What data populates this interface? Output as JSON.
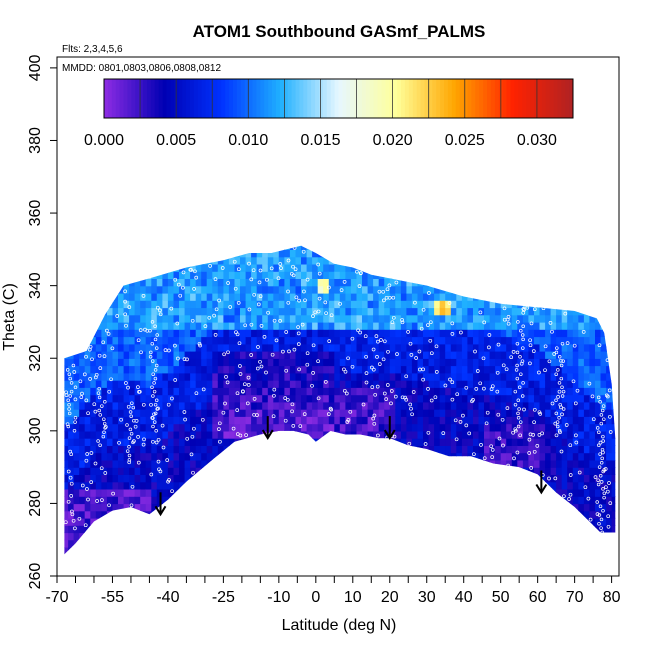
{
  "chart_data": {
    "type": "heatmap",
    "title": "ATOM1 Southbound GASmf_PALMS",
    "subtitle_flights": "Flts: 2,3,4,5,6",
    "subtitle_dates": "MMDD: 0801,0803,0806,0808,0812",
    "xlabel": "Latitude (deg N)",
    "ylabel": "Theta (C)",
    "xlim": [
      -70,
      82
    ],
    "ylim": [
      260,
      403
    ],
    "x_ticks_labeled": [
      "-70",
      "-55",
      "-40",
      "-25",
      "-10",
      "0",
      "10",
      "20",
      "30",
      "40",
      "50",
      "60",
      "70",
      "80"
    ],
    "x_tick_values_labeled": [
      -70,
      -55,
      -40,
      -25,
      -10,
      0,
      10,
      20,
      30,
      40,
      50,
      60,
      70,
      80
    ],
    "x_tick_values_minor": [
      -65,
      -60,
      -50,
      -45,
      -35,
      -30,
      -20,
      -15,
      -5,
      5,
      15,
      25,
      35,
      45,
      55,
      65,
      75
    ],
    "y_ticks": [
      "260",
      "280",
      "300",
      "320",
      "340",
      "360",
      "380",
      "400"
    ],
    "y_tick_values": [
      260,
      280,
      300,
      320,
      340,
      360,
      380,
      400
    ],
    "colorbar": {
      "ticks": [
        "0.000",
        "0.005",
        "0.010",
        "0.015",
        "0.020",
        "0.025",
        "0.030"
      ],
      "tick_values": [
        0,
        0.005,
        0.01,
        0.015,
        0.02,
        0.025,
        0.03
      ],
      "range": [
        0,
        0.0325
      ],
      "colors": [
        "#8a2be2",
        "#0000b3",
        "#0033ff",
        "#1fb0ff",
        "#e6f7ff",
        "#ffff99",
        "#ffa500",
        "#ff2200",
        "#b22222"
      ]
    },
    "upper_boundary": [
      [
        -68,
        320
      ],
      [
        -62,
        322
      ],
      [
        -57,
        332
      ],
      [
        -52,
        340
      ],
      [
        -45,
        342
      ],
      [
        -35,
        345
      ],
      [
        -25,
        347
      ],
      [
        -18,
        349
      ],
      [
        -12,
        349
      ],
      [
        -8,
        350
      ],
      [
        -4,
        351
      ],
      [
        0,
        349
      ],
      [
        5,
        346
      ],
      [
        10,
        345
      ],
      [
        15,
        343
      ],
      [
        20,
        342
      ],
      [
        25,
        341
      ],
      [
        30,
        340
      ],
      [
        40,
        337
      ],
      [
        50,
        335
      ],
      [
        60,
        334
      ],
      [
        70,
        333
      ],
      [
        76,
        331
      ],
      [
        78,
        327
      ],
      [
        80,
        313
      ],
      [
        81,
        298
      ],
      [
        81,
        278
      ]
    ],
    "lower_boundary": [
      [
        -68,
        266
      ],
      [
        -65,
        269
      ],
      [
        -60,
        275
      ],
      [
        -55,
        278
      ],
      [
        -50,
        279
      ],
      [
        -45,
        277
      ],
      [
        -40,
        281
      ],
      [
        -35,
        286
      ],
      [
        -28,
        292
      ],
      [
        -22,
        297
      ],
      [
        -15,
        299
      ],
      [
        -10,
        300
      ],
      [
        -6,
        300
      ],
      [
        -2,
        299
      ],
      [
        0,
        297
      ],
      [
        4,
        300
      ],
      [
        8,
        299
      ],
      [
        12,
        299
      ],
      [
        17,
        298
      ],
      [
        20,
        298
      ],
      [
        25,
        296
      ],
      [
        30,
        295
      ],
      [
        36,
        293
      ],
      [
        42,
        293
      ],
      [
        48,
        291
      ],
      [
        55,
        290
      ],
      [
        60,
        288
      ],
      [
        65,
        283
      ],
      [
        70,
        279
      ],
      [
        74,
        275
      ],
      [
        77,
        272
      ],
      [
        81,
        272
      ]
    ],
    "arrows": [
      {
        "lat": -42,
        "theta": 277
      },
      {
        "lat": -13,
        "theta": 298
      },
      {
        "lat": 20,
        "theta": 298
      },
      {
        "lat": 61,
        "theta": 283
      }
    ]
  }
}
